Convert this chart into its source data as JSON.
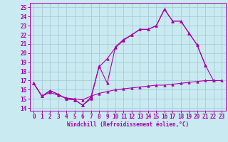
{
  "bg_color": "#c8eaf0",
  "grid_color": "#a8ccd8",
  "line_color": "#aa00aa",
  "xlim": [
    -0.5,
    23.5
  ],
  "ylim": [
    13.7,
    25.5
  ],
  "xticks": [
    0,
    1,
    2,
    3,
    4,
    5,
    6,
    7,
    8,
    9,
    10,
    11,
    12,
    13,
    14,
    15,
    16,
    17,
    18,
    19,
    20,
    21,
    22,
    23
  ],
  "yticks": [
    14,
    15,
    16,
    17,
    18,
    19,
    20,
    21,
    22,
    23,
    24,
    25
  ],
  "xlabel": "Windchill (Refroidissement éolien,°C)",
  "line1_x": [
    0,
    1,
    2,
    3,
    4,
    5,
    6,
    7,
    8,
    9,
    10,
    11,
    12,
    13,
    14,
    15,
    16,
    17,
    18,
    19,
    20,
    21,
    22
  ],
  "line1_y": [
    16.7,
    15.3,
    15.9,
    15.5,
    15.0,
    14.9,
    14.3,
    15.0,
    18.6,
    16.7,
    20.7,
    21.5,
    22.0,
    22.6,
    22.6,
    23.0,
    24.8,
    23.5,
    23.5,
    22.2,
    20.9,
    18.7,
    17.0
  ],
  "line2_x": [
    0,
    1,
    2,
    3,
    4,
    5,
    6,
    7,
    8,
    9,
    10,
    11,
    12,
    13,
    14,
    15,
    16,
    17,
    18,
    19,
    20,
    21
  ],
  "line2_y": [
    16.7,
    15.3,
    15.9,
    15.5,
    15.0,
    14.9,
    14.3,
    15.2,
    18.5,
    19.4,
    20.6,
    21.4,
    22.0,
    22.6,
    22.6,
    23.0,
    24.8,
    23.5,
    23.5,
    22.2,
    20.9,
    18.7
  ],
  "line3_x": [
    0,
    1,
    2,
    3,
    4,
    5,
    6,
    7,
    8,
    9,
    10,
    11,
    12,
    13,
    14,
    15,
    16,
    17,
    18,
    19,
    20,
    21,
    22,
    23
  ],
  "line3_y": [
    16.7,
    15.3,
    15.7,
    15.4,
    15.1,
    15.0,
    14.9,
    15.3,
    15.6,
    15.8,
    16.0,
    16.1,
    16.2,
    16.3,
    16.4,
    16.5,
    16.5,
    16.6,
    16.7,
    16.8,
    16.9,
    17.0,
    17.0,
    17.0
  ],
  "tick_fontsize": 5.5,
  "xlabel_fontsize": 5.5
}
